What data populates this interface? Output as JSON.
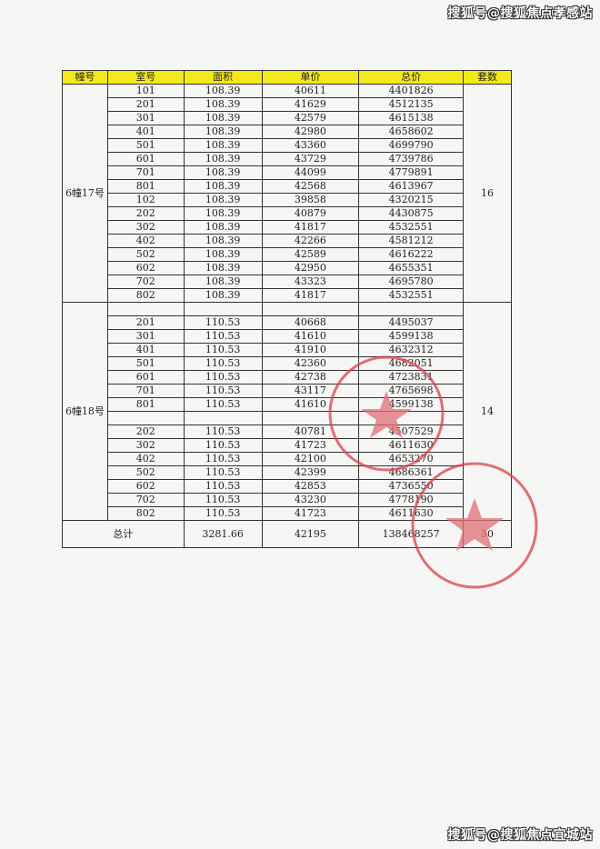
{
  "watermark_top": "搜狐号@搜狐焦点孝感站",
  "watermark_bottom": "搜狐号@搜狐焦点宜城站",
  "table": {
    "headers": [
      "幢号",
      "室号",
      "面积",
      "单价",
      "总价",
      "套数"
    ],
    "groups": [
      {
        "building": "6幢17号",
        "count": "16",
        "rows": [
          [
            "101",
            "108.39",
            "40611",
            "4401826"
          ],
          [
            "201",
            "108.39",
            "41629",
            "4512135"
          ],
          [
            "301",
            "108.39",
            "42579",
            "4615138"
          ],
          [
            "401",
            "108.39",
            "42980",
            "4658602"
          ],
          [
            "501",
            "108.39",
            "43360",
            "4699790"
          ],
          [
            "601",
            "108.39",
            "43729",
            "4739786"
          ],
          [
            "701",
            "108.39",
            "44099",
            "4779891"
          ],
          [
            "801",
            "108.39",
            "42568",
            "4613967"
          ],
          [
            "102",
            "108.39",
            "39858",
            "4320215"
          ],
          [
            "202",
            "108.39",
            "40879",
            "4430875"
          ],
          [
            "302",
            "108.39",
            "41817",
            "4532551"
          ],
          [
            "402",
            "108.39",
            "42266",
            "4581212"
          ],
          [
            "502",
            "108.39",
            "42589",
            "4616222"
          ],
          [
            "602",
            "108.39",
            "42950",
            "4655351"
          ],
          [
            "702",
            "108.39",
            "43323",
            "4695780"
          ],
          [
            "802",
            "108.39",
            "41817",
            "4532551"
          ]
        ]
      },
      {
        "building": "6幢18号",
        "count": "14",
        "rows": [
          [
            "",
            "",
            "",
            ""
          ],
          [
            "201",
            "110.53",
            "40668",
            "4495037"
          ],
          [
            "301",
            "110.53",
            "41610",
            "4599138"
          ],
          [
            "401",
            "110.53",
            "41910",
            "4632312"
          ],
          [
            "501",
            "110.53",
            "42360",
            "4682051"
          ],
          [
            "601",
            "110.53",
            "42738",
            "4723831"
          ],
          [
            "701",
            "110.53",
            "43117",
            "4765698"
          ],
          [
            "801",
            "110.53",
            "41610",
            "4599138"
          ],
          [
            "",
            "",
            "",
            ""
          ],
          [
            "202",
            "110.53",
            "40781",
            "4507529"
          ],
          [
            "302",
            "110.53",
            "41723",
            "4611630"
          ],
          [
            "402",
            "110.53",
            "42100",
            "4653270"
          ],
          [
            "502",
            "110.53",
            "42399",
            "4686361"
          ],
          [
            "602",
            "110.53",
            "42853",
            "4736550"
          ],
          [
            "702",
            "110.53",
            "43230",
            "4778190"
          ],
          [
            "802",
            "110.53",
            "41723",
            "4611630"
          ]
        ]
      }
    ],
    "total": {
      "label": "总计",
      "area": "3281.66",
      "unit_price": "42195",
      "total_price": "138468257",
      "count": "30"
    }
  },
  "colors": {
    "header_bg": "#f5e81a",
    "stamp": "#d9414a"
  },
  "stamps": [
    "company-seal",
    "company-seal"
  ]
}
